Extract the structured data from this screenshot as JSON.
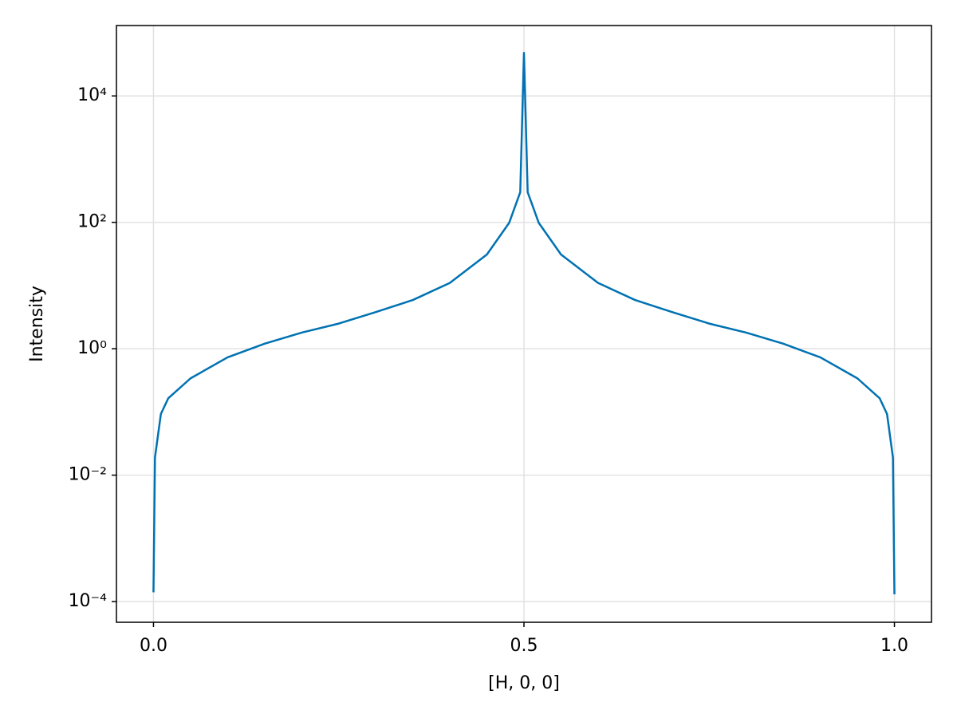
{
  "chart_data": {
    "type": "line",
    "x_label": "[H, 0, 0]",
    "y_label": "Intensity",
    "x": [
      0,
      0.002,
      0.01,
      0.02,
      0.05,
      0.1,
      0.15,
      0.2,
      0.25,
      0.3,
      0.35,
      0.4,
      0.45,
      0.48,
      0.495,
      0.5,
      0.505,
      0.52,
      0.55,
      0.6,
      0.65,
      0.7,
      0.75,
      0.8,
      0.85,
      0.9,
      0.95,
      0.98,
      0.99,
      0.998,
      1.0
    ],
    "series": [
      {
        "name": "Intensity",
        "color": "#0072b2",
        "values": [
          0.00014,
          0.019,
          0.093,
          0.165,
          0.34,
          0.73,
          1.2,
          1.8,
          2.5,
          3.8,
          5.9,
          11,
          31,
          98,
          300,
          48000,
          300,
          98,
          31,
          11,
          5.9,
          3.8,
          2.5,
          1.8,
          1.2,
          0.73,
          0.34,
          0.165,
          0.093,
          0.019,
          0.00013
        ]
      }
    ],
    "xlim": [
      -0.05,
      1.05
    ],
    "xticks": [
      {
        "value": 0,
        "label": "0.0"
      },
      0.5,
      {
        "value": 1,
        "label": "1.0"
      }
    ],
    "ylim": [
      4.7e-05,
      130000
    ],
    "log_y": true,
    "yticks": [
      {
        "value": 0.0001,
        "label": "10⁻⁴"
      },
      {
        "value": 0.01,
        "label": "10⁻²"
      },
      {
        "value": 1,
        "label": "10⁰"
      },
      {
        "value": 100,
        "label": "10²"
      },
      {
        "value": 10000,
        "label": "10⁴"
      }
    ],
    "grid": true
  }
}
